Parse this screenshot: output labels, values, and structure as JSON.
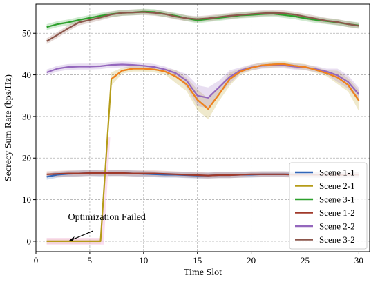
{
  "chart_data": {
    "type": "line",
    "title": "",
    "xlabel": "Time Slot",
    "ylabel": "Secrecy Sum Rate (bps/Hz)",
    "xlim": [
      0,
      31
    ],
    "ylim": [
      -2.5,
      57
    ],
    "xticks": [
      0,
      5,
      10,
      15,
      20,
      25,
      30
    ],
    "yticks": [
      0,
      10,
      20,
      30,
      40,
      50
    ],
    "grid": true,
    "legend_position": "lower-right",
    "x": [
      1,
      2,
      3,
      4,
      5,
      6,
      7,
      8,
      9,
      10,
      11,
      12,
      13,
      14,
      15,
      16,
      17,
      18,
      19,
      20,
      21,
      22,
      23,
      24,
      25,
      26,
      27,
      28,
      29,
      30
    ],
    "series": [
      {
        "name": "Scene 1-1",
        "color": "#3266b8",
        "values": [
          15.5,
          16.0,
          16.2,
          16.3,
          16.4,
          16.3,
          16.4,
          16.4,
          16.3,
          16.2,
          16.1,
          16.0,
          16.0,
          15.9,
          15.8,
          15.8,
          15.9,
          15.9,
          16.0,
          16.0,
          16.1,
          16.1,
          16.1,
          16.1,
          16.1,
          16.0,
          16.0,
          16.0,
          16.0,
          16.0
        ]
      },
      {
        "name": "Scene 2-1",
        "color": "#b59c18",
        "values": [
          0,
          0,
          0,
          0,
          0,
          0,
          39,
          41,
          41.5,
          41.5,
          41.3,
          40.8,
          39.6,
          37.7,
          34.0,
          31.8,
          35.3,
          39.0,
          40.8,
          41.7,
          42.3,
          42.5,
          42.6,
          42.2,
          41.9,
          41.2,
          40.4,
          39.4,
          37.6,
          33.8
        ]
      },
      {
        "name": "Scene 3-1",
        "color": "#2ca02c",
        "values": [
          51.5,
          52.2,
          52.6,
          53.2,
          53.7,
          54.2,
          54.6,
          54.9,
          55.0,
          55.2,
          55.1,
          54.6,
          54.2,
          53.6,
          53.1,
          53.4,
          53.7,
          54.0,
          54.3,
          54.4,
          54.6,
          54.7,
          54.4,
          54.1,
          53.6,
          53.2,
          52.9,
          52.6,
          52.2,
          51.9
        ]
      },
      {
        "name": "Scene 1-2",
        "color": "#a0392a",
        "values": [
          16.1,
          16.2,
          16.3,
          16.3,
          16.4,
          16.4,
          16.4,
          16.4,
          16.3,
          16.3,
          16.3,
          16.2,
          16.1,
          16.0,
          15.9,
          15.8,
          15.9,
          15.9,
          16.0,
          16.1,
          16.1,
          16.1,
          16.1,
          16.0,
          16.0,
          16.0,
          16.0,
          15.9,
          16.0,
          16.0
        ]
      },
      {
        "name": "Scene 2-2",
        "color": "#9467bd",
        "values": [
          40.6,
          41.5,
          41.9,
          42.0,
          42.0,
          42.1,
          42.4,
          42.5,
          42.4,
          42.2,
          41.9,
          41.3,
          40.4,
          38.6,
          35.0,
          34.5,
          37.0,
          39.5,
          41.1,
          41.8,
          42.2,
          42.3,
          42.3,
          42.0,
          41.8,
          41.4,
          40.8,
          39.9,
          38.3,
          35.3
        ]
      },
      {
        "name": "Scene 3-2",
        "color": "#8c564b",
        "values": [
          48.1,
          49.6,
          51.2,
          52.6,
          53.2,
          53.8,
          54.5,
          54.9,
          55.0,
          55.1,
          54.9,
          54.6,
          54.0,
          53.6,
          53.4,
          53.6,
          53.9,
          54.2,
          54.4,
          54.6,
          54.8,
          54.9,
          54.8,
          54.5,
          54.0,
          53.5,
          53.0,
          52.7,
          52.2,
          51.8
        ]
      }
    ],
    "annotations": [
      {
        "text": "Optimization Failed",
        "arrow_to": [
          3,
          0
        ]
      }
    ]
  }
}
